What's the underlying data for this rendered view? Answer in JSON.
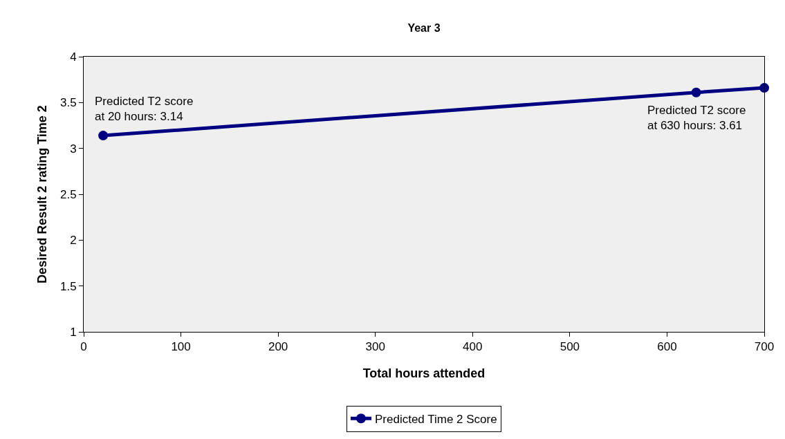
{
  "chart_data": {
    "type": "line",
    "title": "Year 3",
    "xlabel": "Total hours attended",
    "ylabel": "Desired Result 2 rating Time 2",
    "x": [
      20,
      630,
      700
    ],
    "series": [
      {
        "name": "Predicted Time 2 Score",
        "color": "#000080",
        "values": [
          3.14,
          3.61,
          3.66
        ]
      }
    ],
    "xlim": [
      0,
      700
    ],
    "xticks": [
      0,
      100,
      200,
      300,
      400,
      500,
      600,
      700
    ],
    "ylim": [
      1,
      4
    ],
    "yticks": [
      1,
      1.5,
      2,
      2.5,
      3,
      3.5,
      4
    ],
    "annotations": [
      {
        "text": "Predicted T2 score\nat 20 hours: 3.14",
        "x": 20,
        "y": 3.14
      },
      {
        "text": "Predicted T2 score\nat 630 hours: 3.61",
        "x": 630,
        "y": 3.61
      }
    ],
    "legend": "bottom",
    "marker": "circle",
    "line_style": "solid",
    "grid": false
  }
}
